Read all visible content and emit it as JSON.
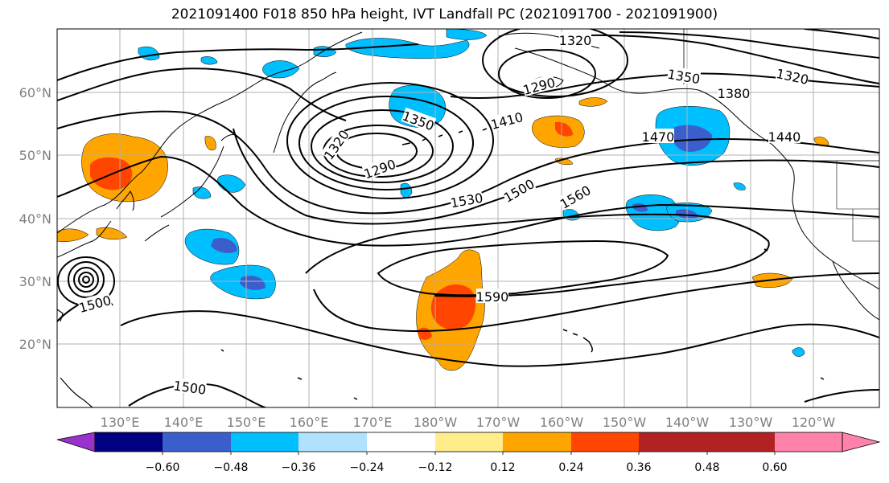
{
  "title": "2021091400 F018 850 hPa height, IVT Landfall PC (2021091700 - 2021091900)",
  "lon_labels": [
    "130°E",
    "140°E",
    "150°E",
    "160°E",
    "170°E",
    "180°W",
    "170°W",
    "160°W",
    "150°W",
    "140°W",
    "130°W",
    "120°W"
  ],
  "lat_labels": [
    "60°N",
    "50°N",
    "40°N",
    "30°N",
    "20°N"
  ],
  "contour_labels": [
    "1320",
    "1290",
    "1350",
    "1380",
    "1320",
    "1350",
    "1320",
    "1290",
    "1410",
    "1470",
    "1440",
    "1530",
    "1500",
    "1560",
    "1590",
    "1500",
    "1500"
  ],
  "colorbar": {
    "tick_labels": [
      "−0.60",
      "−0.48",
      "−0.36",
      "−0.24",
      "−0.12",
      "0.12",
      "0.24",
      "0.36",
      "0.48",
      "0.60"
    ],
    "colors": [
      "#9932cc",
      "#000080",
      "#3a5fcd",
      "#00bfff",
      "#b0e2ff",
      "#ffffff",
      "#ffec8b",
      "#ffa500",
      "#ff4500",
      "#b22222",
      "#ff82ab"
    ]
  }
}
